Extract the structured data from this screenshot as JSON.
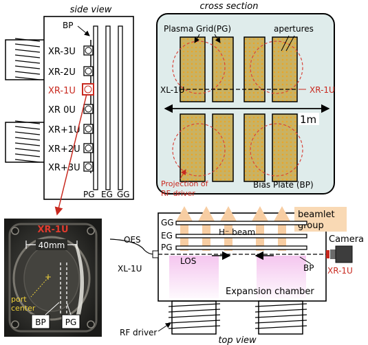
{
  "colors": {
    "red": "#c8281e",
    "panel_bg": "#dfeceb",
    "grid_fill": "#c9b263",
    "grid_dot": "#e0a52a",
    "beam": "#f6cfa3",
    "pink": "#f2c7ec",
    "label_bg": "#f9d9b4"
  },
  "side_view": {
    "title": "side view",
    "bp_label": "BP",
    "ports": [
      "XR-3U",
      "XR-2U",
      "XR-1U",
      "XR 0U",
      "XR+1U",
      "XR+2U",
      "XR+3U"
    ],
    "highlighted_port": "XR-1U",
    "electrodes": [
      "PG",
      "EG",
      "GG"
    ]
  },
  "cross_section": {
    "title": "cross section",
    "pg_label": "Plasma Grid(PG)",
    "apertures_label": "apertures",
    "left_port": "XL-1U",
    "right_port": "XR-1U",
    "scale": "1m",
    "rf_projection": [
      "Projection of",
      "RF driver"
    ],
    "bp_label": "Bias Plate (BP)"
  },
  "photo": {
    "port": "XR-1U",
    "width": "40mm",
    "center": [
      "port",
      "center"
    ],
    "bp": "BP",
    "pg": "PG"
  },
  "top_view": {
    "title": "top view",
    "electrodes": [
      "GG",
      "EG",
      "PG"
    ],
    "beam": "H⁻ beam",
    "beamlet": [
      "beamlet",
      "group"
    ],
    "oes": "OES",
    "los": "LOS",
    "camera": "Camera",
    "left_port": "XL-1U",
    "right_port": "XR-1U",
    "bp": "BP",
    "chamber": "Expansion chamber",
    "rf_driver": "RF driver"
  }
}
